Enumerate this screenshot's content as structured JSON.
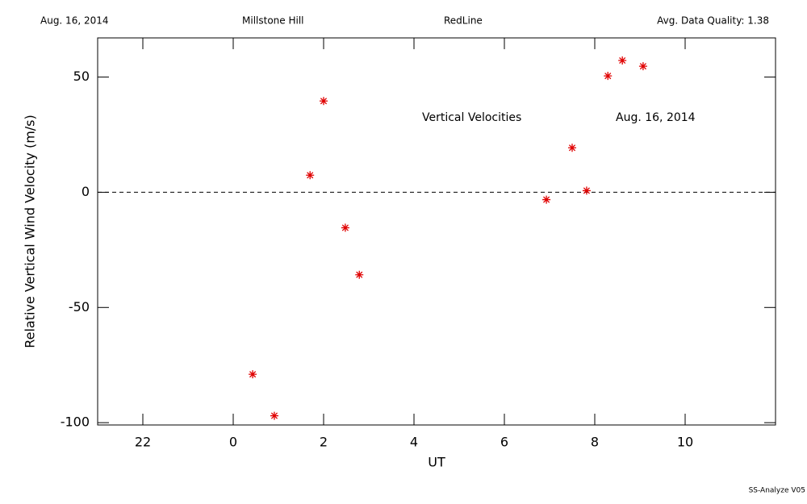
{
  "chart_data": {
    "type": "scatter",
    "header": {
      "left": "Aug. 16, 2014",
      "center_left": "Millstone Hill",
      "center_right": "RedLine",
      "right": "Avg. Data Quality: 1.38"
    },
    "annotations": [
      "Vertical Velocities",
      "Aug. 16, 2014"
    ],
    "footer": "SS-Analyze V05",
    "xlabel": "UT",
    "ylabel": "Relative Vertical Wind Velocity (m/s)",
    "color": "#e00000",
    "x": [
      0.43,
      0.91,
      1.7,
      2.0,
      2.48,
      2.79,
      6.93,
      7.5,
      7.82,
      8.29,
      8.61,
      9.07
    ],
    "values": [
      -79,
      -97,
      7.4,
      39.6,
      -15.4,
      -35.8,
      -3.2,
      19.3,
      0.7,
      50.5,
      57.2,
      54.7
    ],
    "xlim": [
      -3,
      12
    ],
    "xticks": [
      {
        "value": -2,
        "label": "22"
      },
      0,
      2,
      4,
      6,
      8,
      10
    ],
    "ylim": [
      -101,
      67
    ],
    "yticks": [
      -100,
      -50,
      0,
      50
    ]
  }
}
